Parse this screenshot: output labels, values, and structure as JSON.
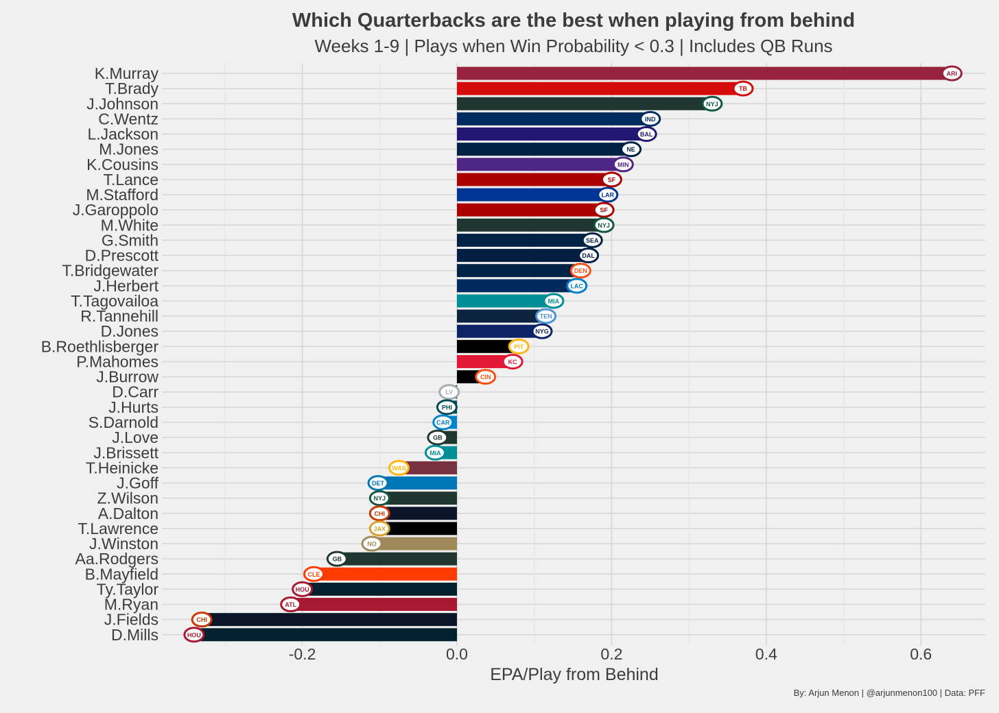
{
  "chart_data": {
    "type": "bar",
    "orientation": "horizontal",
    "title": "Which Quarterbacks are the best when playing from behind",
    "subtitle": "Weeks 1-9 | Plays when Win Probability < 0.3 | Includes QB Runs",
    "xlabel": "EPA/Play from Behind",
    "ylabel": "",
    "caption": "By: Arjun Menon | @arjunmenon100 | Data: PFF",
    "xlim": [
      -0.38,
      0.685
    ],
    "xticks": [
      -0.2,
      0.0,
      0.2,
      0.4,
      0.6
    ],
    "xtick_labels": [
      "-0.2",
      "0.0",
      "0.2",
      "0.4",
      "0.6"
    ],
    "grid": true,
    "legend": "none",
    "categories": [
      "K.Murray",
      "T.Brady",
      "J.Johnson",
      "C.Wentz",
      "L.Jackson",
      "M.Jones",
      "K.Cousins",
      "T.Lance",
      "M.Stafford",
      "J.Garoppolo",
      "M.White",
      "G.Smith",
      "D.Prescott",
      "T.Bridgewater",
      "J.Herbert",
      "T.Tagovailoa",
      "R.Tannehill",
      "D.Jones",
      "B.Roethlisberger",
      "P.Mahomes",
      "J.Burrow",
      "D.Carr",
      "J.Hurts",
      "S.Darnold",
      "J.Love",
      "J.Brissett",
      "T.Heinicke",
      "J.Goff",
      "Z.Wilson",
      "A.Dalton",
      "T.Lawrence",
      "J.Winston",
      "Aa.Rodgers",
      "B.Mayfield",
      "Ty.Taylor",
      "M.Ryan",
      "J.Fields",
      "D.Mills"
    ],
    "values": [
      0.64,
      0.37,
      0.33,
      0.25,
      0.245,
      0.225,
      0.215,
      0.2,
      0.195,
      0.19,
      0.19,
      0.175,
      0.17,
      0.16,
      0.155,
      0.125,
      0.115,
      0.11,
      0.08,
      0.072,
      0.037,
      -0.01,
      -0.013,
      -0.018,
      -0.025,
      -0.028,
      -0.075,
      -0.102,
      -0.1,
      -0.1,
      -0.1,
      -0.11,
      -0.155,
      -0.185,
      -0.2,
      -0.215,
      -0.33,
      -0.34
    ],
    "teams": [
      "ARI",
      "TB",
      "NYJ",
      "IND",
      "BAL",
      "NE",
      "MIN",
      "SF",
      "LAR",
      "SF",
      "NYJ",
      "SEA",
      "DAL",
      "DEN",
      "LAC",
      "MIA",
      "TEN",
      "NYG",
      "PIT",
      "KC",
      "CIN",
      "LV",
      "PHI",
      "CAR",
      "GB",
      "MIA",
      "WAS",
      "DET",
      "NYJ",
      "CHI",
      "JAX",
      "NO",
      "GB",
      "CLE",
      "HOU",
      "ATL",
      "CHI",
      "HOU"
    ],
    "bar_colors": [
      "#97233F",
      "#D50A0A",
      "#203731",
      "#002C5F",
      "#241773",
      "#002244",
      "#4F2683",
      "#AA0000",
      "#003594",
      "#AA0000",
      "#203731",
      "#002244",
      "#041E42",
      "#002244",
      "#002A5E",
      "#008E97",
      "#0C2340",
      "#0B2265",
      "#000000",
      "#E31837",
      "#000000",
      "#000000",
      "#004C54",
      "#0085CA",
      "#203731",
      "#008E97",
      "#773141",
      "#0076B6",
      "#203731",
      "#0B162A",
      "#000000",
      "#9F8958",
      "#203731",
      "#FF3C00",
      "#03202F",
      "#A71930",
      "#0B162A",
      "#03202F"
    ],
    "logo_colors": [
      "#97233F",
      "#D50A0A",
      "#125740",
      "#002C5F",
      "#241773",
      "#002244",
      "#4F2683",
      "#AA0000",
      "#003594",
      "#AA0000",
      "#125740",
      "#002244",
      "#041E42",
      "#FB4F14",
      "#0080C6",
      "#008E97",
      "#4B92DB",
      "#0B2265",
      "#FFB612",
      "#E31837",
      "#FB4F14",
      "#A5ACAF",
      "#004C54",
      "#0085CA",
      "#203731",
      "#008E97",
      "#FFB612",
      "#0076B6",
      "#125740",
      "#C83803",
      "#D7A22A",
      "#9F8958",
      "#203731",
      "#FF3C00",
      "#A71930",
      "#A71930",
      "#C83803",
      "#A71930"
    ]
  }
}
